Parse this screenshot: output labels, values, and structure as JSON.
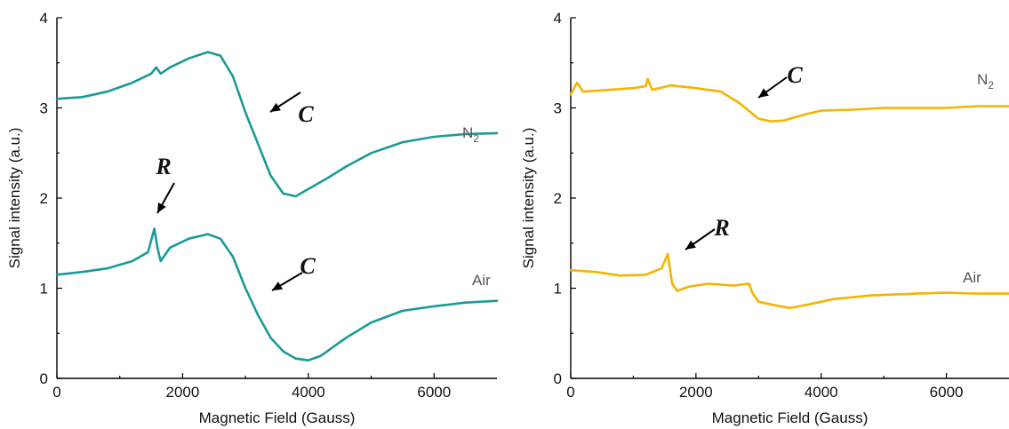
{
  "chart_data": [
    {
      "type": "line",
      "xlabel": "Magnetic Field (Gauss)",
      "ylabel": "Signal intensity (a.u.)",
      "xlim": [
        0,
        7000
      ],
      "ylim": [
        0,
        4
      ],
      "xticks": [
        "0",
        "2000",
        "4000",
        "6000"
      ],
      "yticks": [
        "0",
        "1",
        "2",
        "3",
        "4"
      ],
      "color": "#1b9a98",
      "series": [
        {
          "name": "N2",
          "x": [
            0,
            400,
            800,
            1200,
            1500,
            1580,
            1650,
            1800,
            2100,
            2400,
            2600,
            2800,
            3000,
            3200,
            3400,
            3600,
            3800,
            4000,
            4300,
            4600,
            5000,
            5500,
            6000,
            6500,
            7000
          ],
          "y": [
            3.1,
            3.12,
            3.18,
            3.28,
            3.38,
            3.45,
            3.38,
            3.45,
            3.55,
            3.62,
            3.58,
            3.35,
            2.95,
            2.6,
            2.25,
            2.05,
            2.02,
            2.1,
            2.22,
            2.35,
            2.5,
            2.62,
            2.68,
            2.71,
            2.72
          ]
        },
        {
          "name": "Air",
          "x": [
            0,
            400,
            800,
            1200,
            1450,
            1550,
            1600,
            1650,
            1800,
            2100,
            2400,
            2600,
            2800,
            3000,
            3200,
            3400,
            3600,
            3800,
            4000,
            4200,
            4600,
            5000,
            5500,
            6000,
            6500,
            7000
          ],
          "y": [
            1.15,
            1.18,
            1.22,
            1.3,
            1.4,
            1.66,
            1.45,
            1.3,
            1.45,
            1.55,
            1.6,
            1.55,
            1.35,
            1.0,
            0.7,
            0.45,
            0.3,
            0.22,
            0.2,
            0.25,
            0.45,
            0.62,
            0.75,
            0.8,
            0.84,
            0.86
          ]
        }
      ],
      "series_labels": [
        "N",
        "2",
        "Air"
      ],
      "annotations": [
        "C",
        "R",
        "C"
      ]
    },
    {
      "type": "line",
      "xlabel": "Magnetic Field (Gauss)",
      "ylabel": "Signal intensity (a.u.)",
      "xlim": [
        0,
        7000
      ],
      "ylim": [
        0,
        4
      ],
      "xticks": [
        "0",
        "2000",
        "4000",
        "6000"
      ],
      "yticks": [
        "0",
        "1",
        "2",
        "3",
        "4"
      ],
      "color": "#f4b400",
      "series": [
        {
          "name": "N2",
          "x": [
            0,
            100,
            200,
            600,
            1000,
            1200,
            1230,
            1300,
            1600,
            2000,
            2400,
            2700,
            3000,
            3200,
            3400,
            3700,
            4000,
            4500,
            5000,
            5500,
            6000,
            6500,
            7000
          ],
          "y": [
            3.15,
            3.28,
            3.18,
            3.2,
            3.22,
            3.24,
            3.32,
            3.2,
            3.25,
            3.22,
            3.18,
            3.05,
            2.88,
            2.85,
            2.86,
            2.92,
            2.97,
            2.98,
            3.0,
            3.0,
            3.0,
            3.02,
            3.02
          ]
        },
        {
          "name": "Air",
          "x": [
            0,
            400,
            800,
            1200,
            1450,
            1550,
            1620,
            1700,
            1900,
            2200,
            2600,
            2850,
            2900,
            3000,
            3200,
            3500,
            3800,
            4200,
            4800,
            5500,
            6000,
            6500,
            7000
          ],
          "y": [
            1.2,
            1.18,
            1.14,
            1.15,
            1.22,
            1.38,
            1.05,
            0.97,
            1.02,
            1.05,
            1.03,
            1.05,
            0.95,
            0.85,
            0.82,
            0.78,
            0.82,
            0.88,
            0.92,
            0.94,
            0.95,
            0.94,
            0.94
          ]
        }
      ],
      "series_labels": [
        "N",
        "2",
        "Air"
      ],
      "annotations": [
        "C",
        "R"
      ]
    }
  ]
}
